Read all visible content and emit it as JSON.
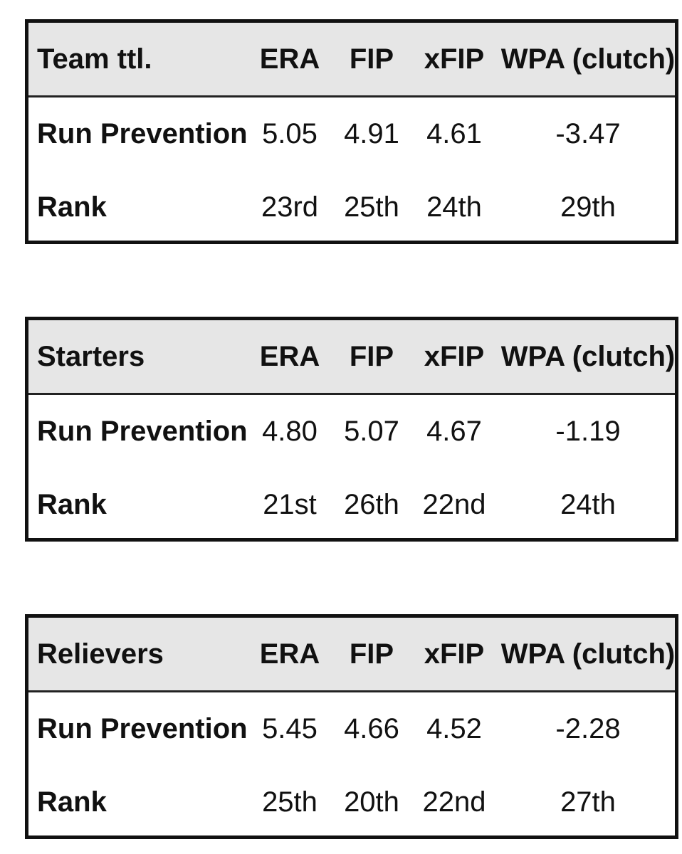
{
  "tables": [
    {
      "title": "Team ttl.",
      "columns": [
        "ERA",
        "FIP",
        "xFIP",
        "WPA (clutch)"
      ],
      "rows": [
        {
          "label": "Run Prevention",
          "values": [
            "5.05",
            "4.91",
            "4.61",
            "-3.47"
          ]
        },
        {
          "label": "Rank",
          "values": [
            "23rd",
            "25th",
            "24th",
            "29th"
          ]
        }
      ]
    },
    {
      "title": "Starters",
      "columns": [
        "ERA",
        "FIP",
        "xFIP",
        "WPA (clutch)"
      ],
      "rows": [
        {
          "label": "Run Prevention",
          "values": [
            "4.80",
            "5.07",
            "4.67",
            "-1.19"
          ]
        },
        {
          "label": "Rank",
          "values": [
            "21st",
            "26th",
            "22nd",
            "24th"
          ]
        }
      ]
    },
    {
      "title": "Relievers",
      "columns": [
        "ERA",
        "FIP",
        "xFIP",
        "WPA (clutch)"
      ],
      "rows": [
        {
          "label": "Run Prevention",
          "values": [
            "5.45",
            "4.66",
            "4.52",
            "-2.28"
          ]
        },
        {
          "label": "Rank",
          "values": [
            "25th",
            "20th",
            "22nd",
            "27th"
          ]
        }
      ]
    }
  ]
}
